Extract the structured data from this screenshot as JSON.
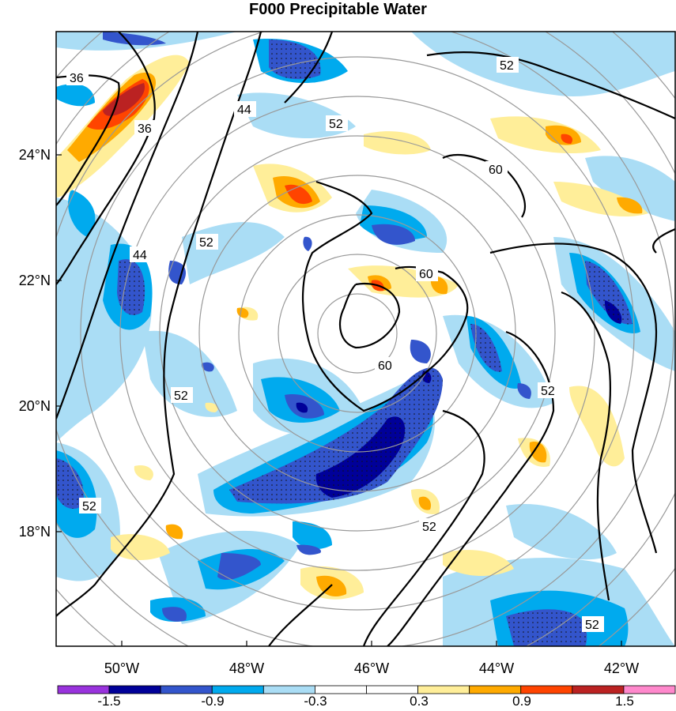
{
  "title": "F000 Precipitable Water",
  "map": {
    "lat_labels": [
      "24°N",
      "22°N",
      "20°N",
      "18°N"
    ],
    "lon_labels": [
      "50°W",
      "48°W",
      "46°W",
      "44°W",
      "42°W"
    ],
    "lat_values": [
      24,
      22,
      20,
      18
    ],
    "lon_values": [
      -50,
      -48,
      -46,
      -44,
      -42
    ],
    "contour_labels": [
      "36",
      "36",
      "44",
      "44",
      "52",
      "52",
      "52",
      "52",
      "52",
      "52",
      "52",
      "52",
      "60",
      "60",
      "60"
    ],
    "colors": {
      "background": "#ffffff",
      "range_circle": "#999999",
      "contour_line": "#000000"
    }
  },
  "colorbar": {
    "tick_labels": [
      "-1.5",
      "-0.9",
      "-0.3",
      "0.3",
      "0.9",
      "1.5"
    ],
    "colors": [
      "#9933dd",
      "#000099",
      "#3355cc",
      "#00aaee",
      "#aaddf5",
      "#ffffff",
      "#ffffff",
      "#ffee99",
      "#ffaa00",
      "#ff4400",
      "#bb2222",
      "#ff88cc"
    ]
  }
}
